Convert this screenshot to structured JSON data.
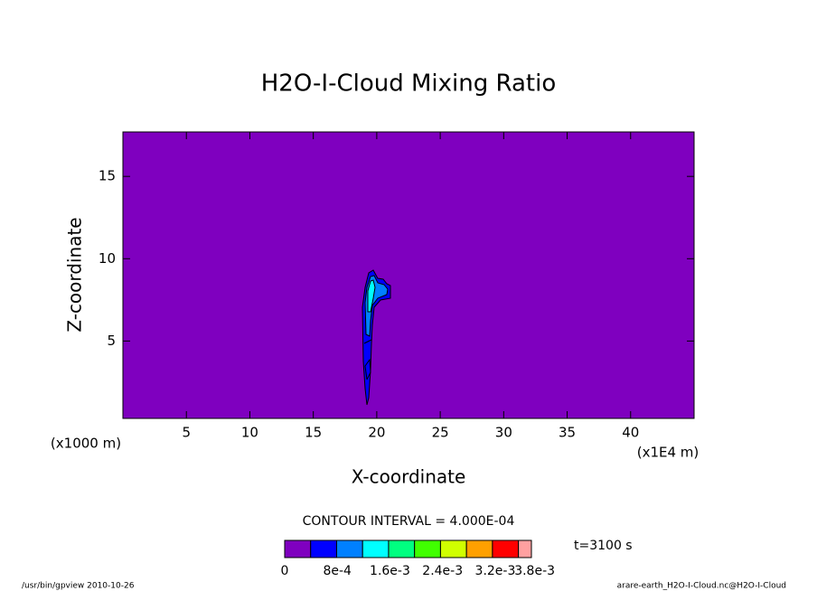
{
  "chart_data": {
    "type": "contour",
    "title": "H2O-I-Cloud Mixing Ratio",
    "xlabel": "X-coordinate",
    "ylabel": "Z-coordinate",
    "x_units": "(x1000 m)",
    "x_scale_note": "(x1E4 m)",
    "xlim": [
      0,
      45
    ],
    "ylim": [
      0.3,
      17.7
    ],
    "xticks": [
      5,
      10,
      15,
      20,
      25,
      30,
      35,
      40
    ],
    "yticks": [
      5,
      10,
      15
    ],
    "background_color": "#7f00bf",
    "contour_interval": "CONTOUR INTERVAL = 4.000E-04",
    "time": "t=3100 s",
    "colorbar": {
      "colors": [
        "#7f00bf",
        "#0000ff",
        "#0080ff",
        "#00ffff",
        "#00ff80",
        "#40ff00",
        "#d0ff00",
        "#ffa000",
        "#ff0000",
        "#ffa0a0"
      ],
      "ticks": [
        0,
        {
          "value": 0.0008,
          "label": "8e-4"
        },
        {
          "value": 0.0016,
          "label": "1.6e-3"
        },
        {
          "value": 0.0024,
          "label": "2.4e-3"
        },
        {
          "value": 0.0032,
          "label": "3.2e-3"
        },
        {
          "value": 0.0038,
          "label": "3.8e-3"
        }
      ],
      "lim": [
        0,
        0.00375
      ]
    },
    "footer_left": "/usr/bin/gpview  2010-10-26",
    "footer_right": "arare-earth_H2O-I-Cloud.nc@H2O-I-Cloud"
  }
}
